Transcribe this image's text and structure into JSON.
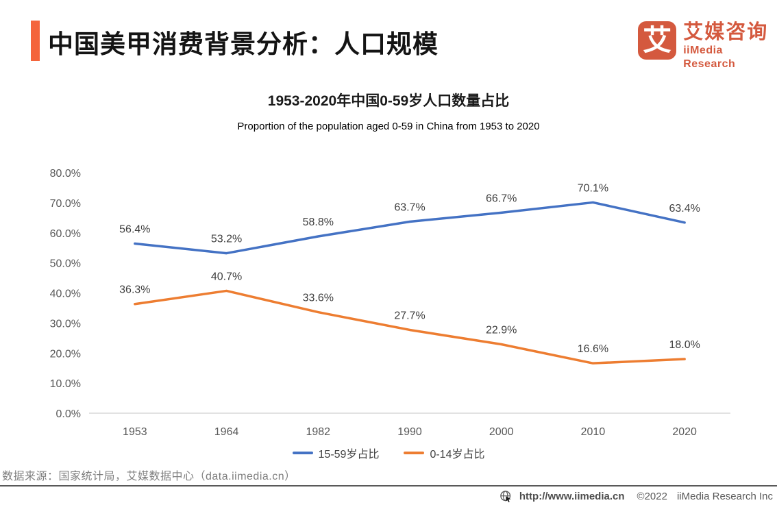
{
  "header": {
    "title": "中国美甲消费背景分析：人口规模"
  },
  "logo": {
    "icon_char": "艾",
    "name_cn": "艾媒咨询",
    "name_en": "iiMedia Research"
  },
  "chart_data": {
    "type": "line",
    "title": "1953-2020年中国0-59岁人口数量占比",
    "subtitle": "Proportion of the population aged 0-59 in China from 1953 to 2020",
    "categories": [
      "1953",
      "1964",
      "1982",
      "1990",
      "2000",
      "2010",
      "2020"
    ],
    "series": [
      {
        "name": "15-59岁占比",
        "color": "#4472C4",
        "values": [
          56.4,
          53.2,
          58.8,
          63.7,
          66.7,
          70.1,
          63.4
        ]
      },
      {
        "name": "0-14岁占比",
        "color": "#ED7D31",
        "values": [
          36.3,
          40.7,
          33.6,
          27.7,
          22.9,
          16.6,
          18.0
        ]
      }
    ],
    "y_axis": {
      "min": 0,
      "max": 80,
      "step": 10,
      "tick_suffix": "%",
      "tick_decimals": 1
    },
    "data_labels": true,
    "data_label_suffix": "%",
    "grid": false,
    "legend_position": "bottom"
  },
  "footer": {
    "source": "数据来源：国家统计局，艾媒数据中心（data.iimedia.cn）",
    "url": "http://www.iimedia.cn",
    "copyright_year": "©2022",
    "copyright_owner": "iiMedia Research Inc"
  },
  "colors": {
    "accent_bar": "#F4653C",
    "logo": "#D4593E",
    "series_blue": "#4472C4",
    "series_orange": "#ED7D31",
    "axis_line": "#D9D9D9",
    "axis_text": "#595959",
    "data_label_text": "#3F3F3F",
    "legend_text": "#404040",
    "source_text": "#7F7F7F",
    "divider": "#595959",
    "bottom_bar_text": "#595959"
  }
}
